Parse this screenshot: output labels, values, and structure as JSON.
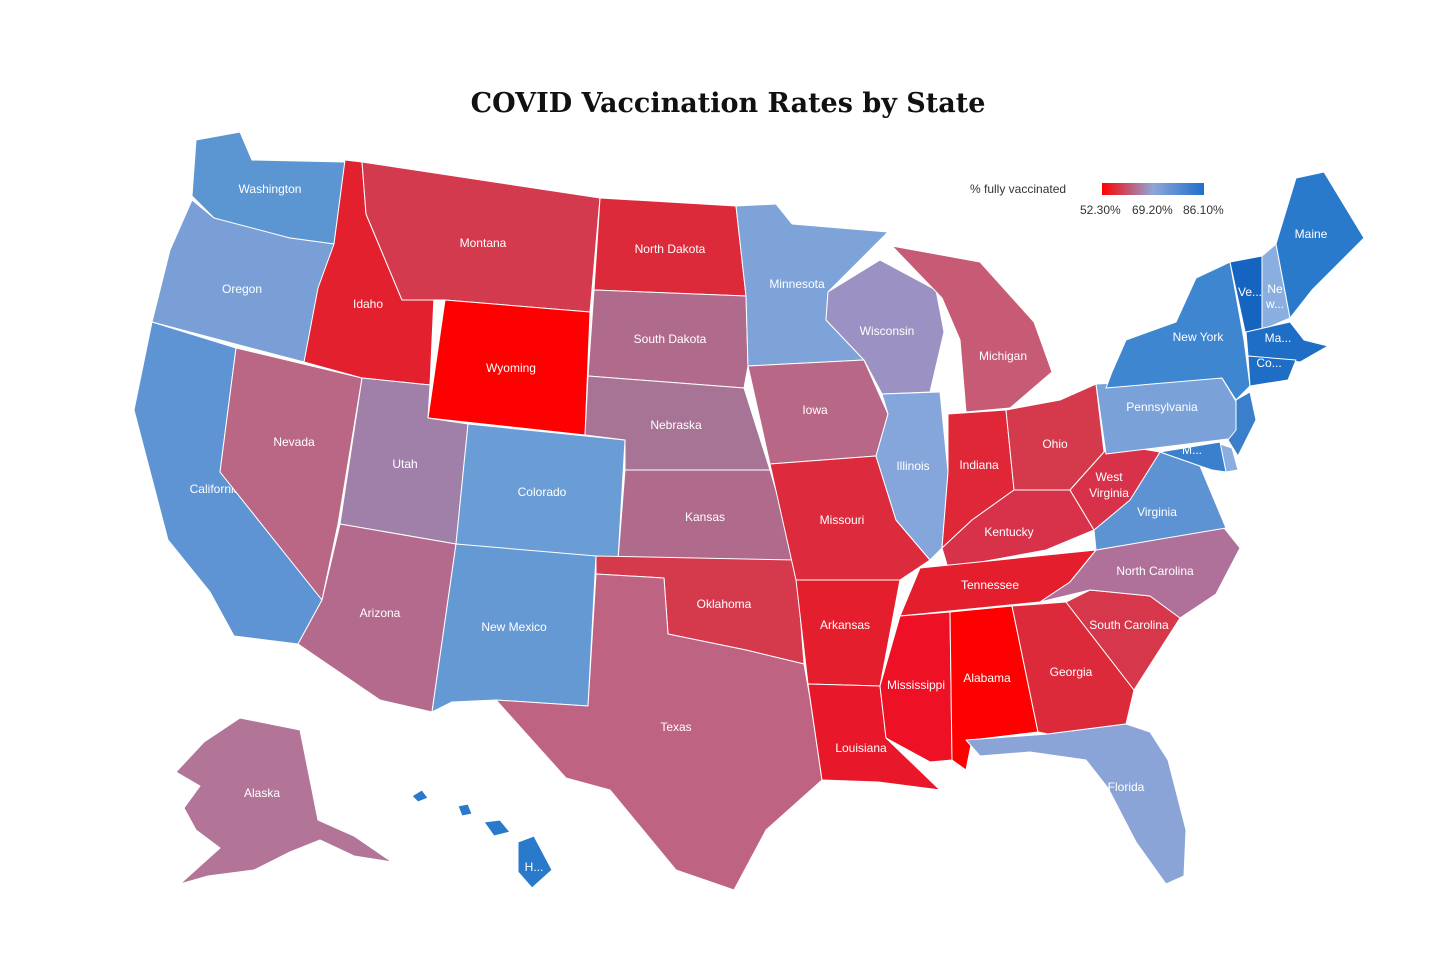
{
  "title": "COVID Vaccination Rates by State",
  "legend": {
    "title": "% fully vaccinated",
    "min_label": "52.30%",
    "mid_label": "69.20%",
    "max_label": "86.10%",
    "min_color": "#ff0000",
    "mid_color": "#8fa6d8",
    "max_color": "#1f6fc9"
  },
  "states": [
    {
      "id": "washington",
      "label": "Washington",
      "color": "#5b96d2"
    },
    {
      "id": "oregon",
      "label": "Oregon",
      "color": "#7a9fd6"
    },
    {
      "id": "california",
      "label": "California",
      "color": "#5e94d3"
    },
    {
      "id": "nevada",
      "label": "Nevada",
      "color": "#b96784"
    },
    {
      "id": "idaho",
      "label": "Idaho",
      "color": "#e3202e"
    },
    {
      "id": "montana",
      "label": "Montana",
      "color": "#d43a4e"
    },
    {
      "id": "wyoming",
      "label": "Wyoming",
      "color": "#ff0000"
    },
    {
      "id": "utah",
      "label": "Utah",
      "color": "#a07fa8"
    },
    {
      "id": "arizona",
      "label": "Arizona",
      "color": "#b46a8c"
    },
    {
      "id": "colorado",
      "label": "Colorado",
      "color": "#6a9cd5"
    },
    {
      "id": "new-mexico",
      "label": "New Mexico",
      "color": "#6599d4"
    },
    {
      "id": "north-dakota",
      "label": "North Dakota",
      "color": "#dd2a3a"
    },
    {
      "id": "south-dakota",
      "label": "South Dakota",
      "color": "#b06b8c"
    },
    {
      "id": "nebraska",
      "label": "Nebraska",
      "color": "#a87495"
    },
    {
      "id": "kansas",
      "label": "Kansas",
      "color": "#b06b8c"
    },
    {
      "id": "oklahoma",
      "label": "Oklahoma",
      "color": "#d5394c"
    },
    {
      "id": "texas",
      "label": "Texas",
      "color": "#be6381"
    },
    {
      "id": "minnesota",
      "label": "Minnesota",
      "color": "#7da3d8"
    },
    {
      "id": "iowa",
      "label": "Iowa",
      "color": "#b86886"
    },
    {
      "id": "missouri",
      "label": "Missouri",
      "color": "#dc2b3c"
    },
    {
      "id": "arkansas",
      "label": "Arkansas",
      "color": "#e41e2c"
    },
    {
      "id": "louisiana",
      "label": "Louisiana",
      "color": "#e8182a"
    },
    {
      "id": "wisconsin",
      "label": "Wisconsin",
      "color": "#9c91c3"
    },
    {
      "id": "illinois",
      "label": "Illinois",
      "color": "#85a6db"
    },
    {
      "id": "michigan",
      "label": "Michigan",
      "color": "#c75a75"
    },
    {
      "id": "indiana",
      "label": "Indiana",
      "color": "#df2737"
    },
    {
      "id": "ohio",
      "label": "Ohio",
      "color": "#d5394c"
    },
    {
      "id": "kentucky",
      "label": "Kentucky",
      "color": "#d8324a"
    },
    {
      "id": "tennessee",
      "label": "Tennessee",
      "color": "#e41e2c"
    },
    {
      "id": "mississippi",
      "label": "Mississippi",
      "color": "#ee1024"
    },
    {
      "id": "alabama",
      "label": "Alabama",
      "color": "#ff0000"
    },
    {
      "id": "georgia",
      "label": "Georgia",
      "color": "#dd2a3a"
    },
    {
      "id": "south-carolina",
      "label": "South Carolina",
      "color": "#d6374a"
    },
    {
      "id": "north-carolina",
      "label": "North Carolina",
      "color": "#af7199"
    },
    {
      "id": "virginia",
      "label": "Virginia",
      "color": "#5d93d3"
    },
    {
      "id": "west-virginia",
      "label": "West Virginia",
      "color": "#d8324a"
    },
    {
      "id": "florida",
      "label": "Florida",
      "color": "#8aa4d8"
    },
    {
      "id": "pennsylvania",
      "label": "Pennsylvania",
      "color": "#7aa2d9"
    },
    {
      "id": "new-york",
      "label": "New York",
      "color": "#3e86cf"
    },
    {
      "id": "vermont",
      "label": "Ve...",
      "color": "#1565c0"
    },
    {
      "id": "new-hampshire",
      "label": "Ne w...",
      "color": "#8aaee0"
    },
    {
      "id": "maine",
      "label": "Maine",
      "color": "#2a7acc"
    },
    {
      "id": "massachusetts",
      "label": "Ma...",
      "color": "#1d6ec4"
    },
    {
      "id": "connecticut",
      "label": "Co...",
      "color": "#1d6ec4"
    },
    {
      "id": "maryland",
      "label": "M...",
      "color": "#3a80cc"
    },
    {
      "id": "alaska",
      "label": "Alaska",
      "color": "#b27598"
    },
    {
      "id": "hawaii",
      "label": "H...",
      "color": "#2a7acc"
    }
  ]
}
